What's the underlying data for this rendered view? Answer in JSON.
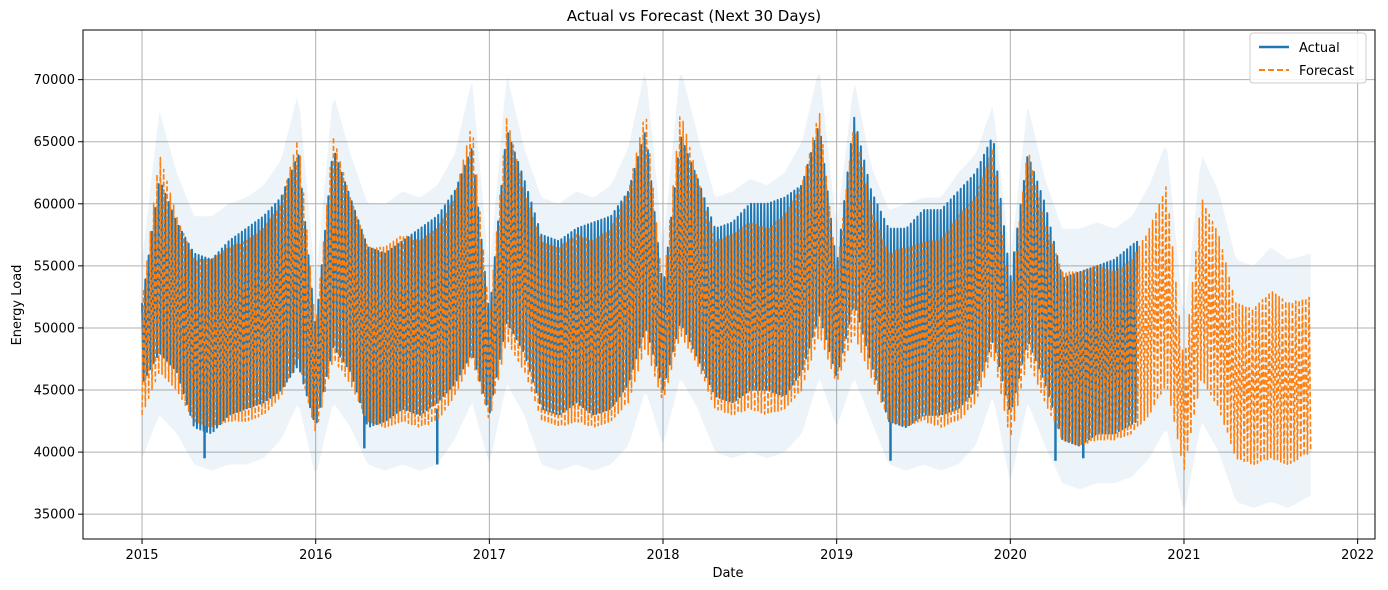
{
  "chart_data": {
    "type": "line",
    "title": "Actual vs Forecast (Next 30 Days)",
    "xlabel": "Date",
    "ylabel": "Energy Load",
    "xlim": [
      2014.66,
      2022.1
    ],
    "ylim": [
      33000,
      74000
    ],
    "x_ticks": [
      2015,
      2016,
      2017,
      2018,
      2019,
      2020,
      2021,
      2022
    ],
    "x_tick_labels": [
      "2015",
      "2016",
      "2017",
      "2018",
      "2019",
      "2020",
      "2021",
      "2022"
    ],
    "y_ticks": [
      35000,
      40000,
      45000,
      50000,
      55000,
      60000,
      65000,
      70000
    ],
    "y_tick_labels": [
      "35000",
      "40000",
      "45000",
      "50000",
      "55000",
      "60000",
      "65000",
      "70000"
    ],
    "grid": true,
    "legend_position": "upper-right",
    "colors": {
      "actual": "#1f77b4",
      "forecast": "#ff7f0e",
      "band": "#1f77b4"
    },
    "series": [
      {
        "name": "Actual",
        "style": "solid",
        "x": [
          2015.0,
          2015.1,
          2015.2,
          2015.3,
          2015.4,
          2015.5,
          2015.6,
          2015.7,
          2015.8,
          2015.9,
          2016.0,
          2016.1,
          2016.2,
          2016.3,
          2016.4,
          2016.5,
          2016.6,
          2016.7,
          2016.8,
          2016.9,
          2017.0,
          2017.1,
          2017.2,
          2017.3,
          2017.4,
          2017.5,
          2017.6,
          2017.7,
          2017.8,
          2017.9,
          2018.0,
          2018.1,
          2018.2,
          2018.3,
          2018.4,
          2018.5,
          2018.6,
          2018.7,
          2018.8,
          2018.9,
          2019.0,
          2019.1,
          2019.2,
          2019.3,
          2019.4,
          2019.5,
          2019.6,
          2019.7,
          2019.8,
          2019.9,
          2020.0,
          2020.1,
          2020.2,
          2020.3,
          2020.4,
          2020.5,
          2020.6,
          2020.73
        ],
        "upper": [
          52000,
          62000,
          58500,
          56000,
          55500,
          57000,
          58000,
          59000,
          60500,
          64000,
          50000,
          64500,
          60500,
          56500,
          56000,
          57000,
          58000,
          59000,
          61000,
          64500,
          51000,
          66000,
          62000,
          57500,
          57000,
          58000,
          58500,
          59000,
          61000,
          66000,
          53000,
          65500,
          62000,
          58000,
          58500,
          60000,
          60000,
          60500,
          61500,
          66500,
          55000,
          67000,
          61000,
          58000,
          58000,
          59500,
          59500,
          61000,
          62500,
          65500,
          54000,
          64000,
          60000,
          54000,
          54500,
          55000,
          55500,
          57000
        ],
        "lower": [
          45500,
          48000,
          46500,
          42000,
          41500,
          43000,
          43500,
          44000,
          45000,
          47000,
          42000,
          48500,
          46500,
          42000,
          42500,
          43500,
          43000,
          44000,
          45500,
          48000,
          43000,
          50500,
          48000,
          43500,
          43000,
          44000,
          43000,
          43500,
          45500,
          50000,
          45000,
          50500,
          47500,
          44500,
          44000,
          45000,
          45000,
          44500,
          46500,
          51000,
          46000,
          52000,
          47000,
          42500,
          42000,
          43000,
          43000,
          43500,
          45000,
          49000,
          43000,
          49000,
          45500,
          41000,
          40500,
          41500,
          41500,
          42500
        ],
        "min_points": [
          [
            2015.36,
            39500
          ],
          [
            2016.28,
            40300
          ],
          [
            2016.7,
            39000
          ],
          [
            2019.31,
            39300
          ],
          [
            2020.26,
            39300
          ],
          [
            2020.42,
            39500
          ]
        ]
      },
      {
        "name": "Forecast",
        "style": "dashed",
        "x": [
          2015.0,
          2015.1,
          2015.2,
          2015.3,
          2015.4,
          2015.5,
          2015.6,
          2015.7,
          2015.8,
          2015.9,
          2016.0,
          2016.1,
          2016.2,
          2016.3,
          2016.4,
          2016.5,
          2016.6,
          2016.7,
          2016.8,
          2016.9,
          2017.0,
          2017.1,
          2017.2,
          2017.3,
          2017.4,
          2017.5,
          2017.6,
          2017.7,
          2017.8,
          2017.9,
          2018.0,
          2018.1,
          2018.2,
          2018.3,
          2018.4,
          2018.5,
          2018.6,
          2018.7,
          2018.8,
          2018.9,
          2019.0,
          2019.1,
          2019.2,
          2019.3,
          2019.4,
          2019.5,
          2019.6,
          2019.7,
          2019.8,
          2019.9,
          2020.0,
          2020.1,
          2020.2,
          2020.3,
          2020.4,
          2020.5,
          2020.6,
          2020.7,
          2020.8,
          2020.9,
          2021.0,
          2021.1,
          2021.2,
          2021.3,
          2021.4,
          2021.5,
          2021.6,
          2021.73
        ],
        "upper": [
          52000,
          64000,
          59000,
          55500,
          55500,
          56500,
          57000,
          58000,
          60000,
          65500,
          50000,
          65500,
          60500,
          56500,
          56500,
          57500,
          57000,
          58000,
          60500,
          66500,
          51000,
          67000,
          61000,
          57000,
          56500,
          57500,
          57000,
          58000,
          61000,
          67500,
          53000,
          67500,
          62000,
          57000,
          57500,
          58500,
          58000,
          59000,
          61500,
          67500,
          54500,
          66500,
          59500,
          56000,
          56500,
          57000,
          57000,
          59000,
          60500,
          64500,
          52000,
          64500,
          58500,
          54500,
          54500,
          55000,
          54500,
          55500,
          58000,
          61500,
          47000,
          60500,
          57500,
          52000,
          51500,
          53000,
          52000,
          52500
        ],
        "lower": [
          43000,
          46500,
          45000,
          42500,
          42000,
          42500,
          42500,
          43000,
          44500,
          47500,
          41500,
          47500,
          45500,
          42500,
          42000,
          42500,
          42000,
          42500,
          44500,
          47500,
          42500,
          49000,
          46500,
          42500,
          42000,
          42500,
          42000,
          42500,
          44000,
          48500,
          44000,
          49500,
          47000,
          43500,
          43000,
          43500,
          43000,
          43500,
          45000,
          49500,
          45500,
          49500,
          46000,
          42500,
          42000,
          42500,
          42000,
          42500,
          44000,
          48000,
          41000,
          47500,
          44000,
          41000,
          40500,
          41000,
          41000,
          41500,
          43000,
          45500,
          38500,
          46000,
          43500,
          39500,
          39000,
          39500,
          39000,
          40000
        ]
      }
    ]
  }
}
